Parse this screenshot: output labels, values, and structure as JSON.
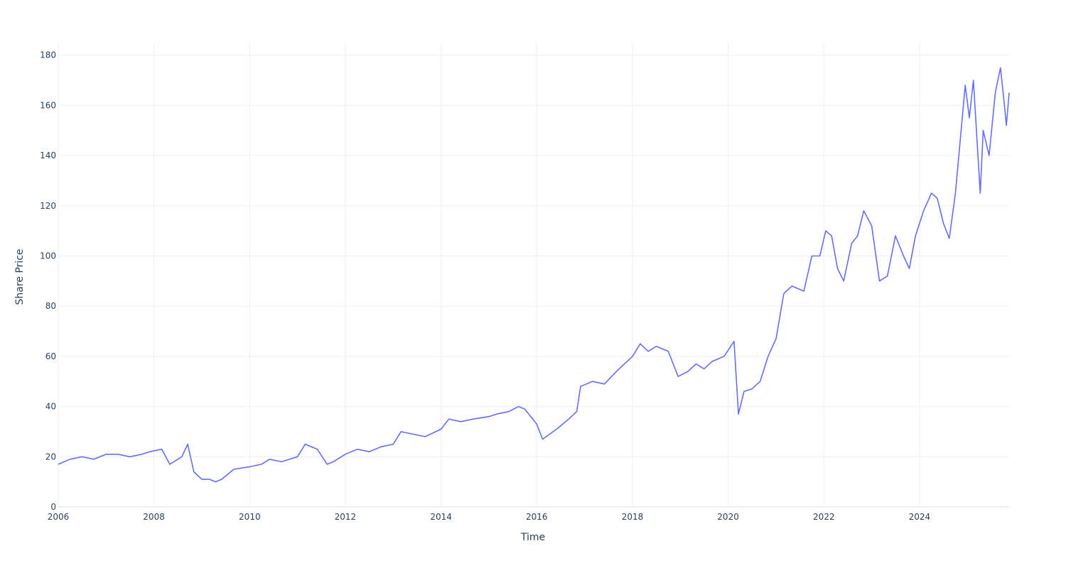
{
  "chart_data": {
    "type": "line",
    "title": "",
    "xlabel": "Time",
    "ylabel": "Share Price",
    "xlim": [
      "2006-01-01",
      "2025-11-15"
    ],
    "ylim": [
      0,
      185
    ],
    "grid": true,
    "legend": "none",
    "line_color": "#636efa",
    "x_ticks": [
      {
        "x": "2006-01-01",
        "label": "2006"
      },
      {
        "x": "2008-01-01",
        "label": "2008"
      },
      {
        "x": "2010-01-01",
        "label": "2010"
      },
      {
        "x": "2012-01-01",
        "label": "2012"
      },
      {
        "x": "2014-01-01",
        "label": "2014"
      },
      {
        "x": "2016-01-01",
        "label": "2016"
      },
      {
        "x": "2018-01-01",
        "label": "2018"
      },
      {
        "x": "2020-01-01",
        "label": "2020"
      },
      {
        "x": "2022-01-01",
        "label": "2022"
      },
      {
        "x": "2024-01-01",
        "label": "2024"
      }
    ],
    "y_ticks": [
      {
        "y": 0,
        "label": "0"
      },
      {
        "y": 20,
        "label": "20"
      },
      {
        "y": 40,
        "label": "40"
      },
      {
        "y": 60,
        "label": "60"
      },
      {
        "y": 80,
        "label": "80"
      },
      {
        "y": 100,
        "label": "100"
      },
      {
        "y": 120,
        "label": "120"
      },
      {
        "y": 140,
        "label": "140"
      },
      {
        "y": 160,
        "label": "160"
      },
      {
        "y": 180,
        "label": "180"
      }
    ],
    "series": [
      {
        "x": [
          "2006-01-01",
          "2006-04-01",
          "2006-07-01",
          "2006-10-01",
          "2007-01-01",
          "2007-04-01",
          "2007-07-01",
          "2007-10-01",
          "2007-12-01",
          "2008-03-01",
          "2008-05-01",
          "2008-08-01",
          "2008-09-15",
          "2008-11-01",
          "2009-01-01",
          "2009-03-01",
          "2009-04-15",
          "2009-06-01",
          "2009-09-01",
          "2010-01-01",
          "2010-04-01",
          "2010-06-01",
          "2010-09-01",
          "2011-01-01",
          "2011-03-01",
          "2011-06-01",
          "2011-08-15",
          "2011-10-01",
          "2012-01-01",
          "2012-04-01",
          "2012-07-01",
          "2012-10-01",
          "2013-01-01",
          "2013-03-01",
          "2013-06-01",
          "2013-09-01",
          "2014-01-01",
          "2014-03-01",
          "2014-06-01",
          "2014-09-01",
          "2015-01-01",
          "2015-03-01",
          "2015-06-01",
          "2015-08-15",
          "2015-10-01",
          "2016-01-01",
          "2016-02-15",
          "2016-06-01",
          "2016-09-01",
          "2016-11-01",
          "2016-12-01",
          "2017-03-01",
          "2017-06-01",
          "2017-09-01",
          "2018-01-01",
          "2018-03-01",
          "2018-05-01",
          "2018-07-01",
          "2018-10-01",
          "2018-12-15",
          "2019-03-01",
          "2019-05-01",
          "2019-07-01",
          "2019-09-01",
          "2019-12-01",
          "2020-02-15",
          "2020-03-20",
          "2020-05-01",
          "2020-07-01",
          "2020-09-01",
          "2020-11-01",
          "2021-01-01",
          "2021-03-01",
          "2021-05-01",
          "2021-08-01",
          "2021-10-01",
          "2021-12-01",
          "2022-01-15",
          "2022-03-01",
          "2022-04-15",
          "2022-06-01",
          "2022-08-01",
          "2022-09-15",
          "2022-11-01",
          "2023-01-01",
          "2023-03-01",
          "2023-05-01",
          "2023-07-01",
          "2023-09-01",
          "2023-10-15",
          "2023-12-01",
          "2024-02-01",
          "2024-04-01",
          "2024-05-15",
          "2024-07-01",
          "2024-08-15",
          "2024-10-01",
          "2024-12-15",
          "2025-01-15",
          "2025-02-15",
          "2025-04-08",
          "2025-05-01",
          "2025-06-15",
          "2025-08-01",
          "2025-09-10",
          "2025-10-10",
          "2025-10-25",
          "2025-11-15"
        ],
        "y": [
          17,
          19,
          20,
          19,
          21,
          21,
          20,
          21,
          22,
          23,
          17,
          20,
          25,
          14,
          11,
          11,
          10,
          11,
          15,
          16,
          17,
          19,
          18,
          20,
          25,
          23,
          17,
          18,
          21,
          23,
          22,
          24,
          25,
          30,
          29,
          28,
          31,
          35,
          34,
          35,
          36,
          37,
          38,
          40,
          39,
          33,
          27,
          31,
          35,
          38,
          48,
          50,
          49,
          54,
          60,
          65,
          62,
          64,
          62,
          52,
          54,
          57,
          55,
          58,
          60,
          66,
          37,
          46,
          47,
          50,
          60,
          67,
          85,
          88,
          86,
          100,
          100,
          110,
          108,
          95,
          90,
          105,
          108,
          118,
          112,
          90,
          92,
          108,
          100,
          95,
          108,
          118,
          125,
          123,
          113,
          107,
          125,
          168,
          155,
          170,
          125,
          150,
          140,
          165,
          175,
          160,
          152,
          165
        ]
      }
    ]
  }
}
